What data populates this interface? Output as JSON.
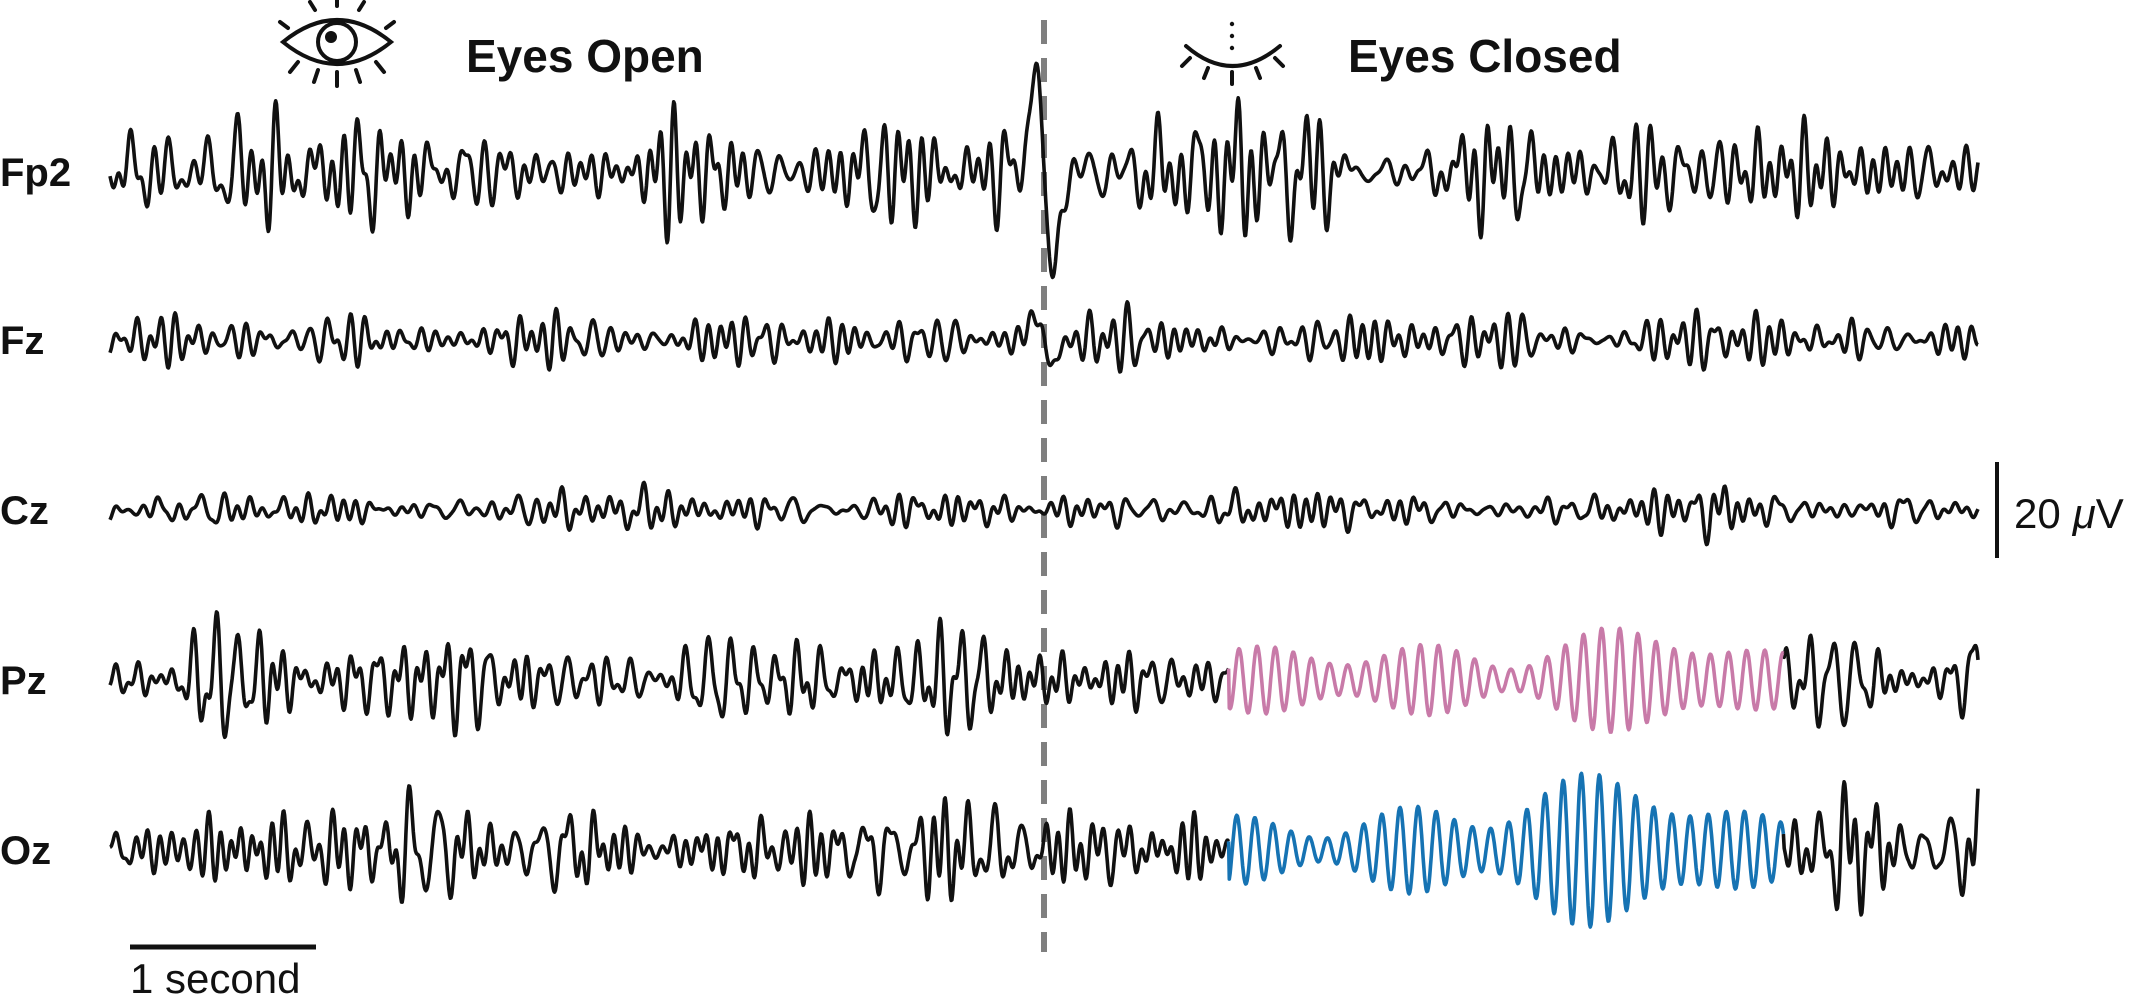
{
  "figure": {
    "conditions": [
      {
        "label": "Eyes Open",
        "icon": "open-eye-icon"
      },
      {
        "label": "Eyes Closed",
        "icon": "closed-eye-icon"
      }
    ],
    "time_scale_label": "1 second",
    "amplitude_scale_value": "20",
    "amplitude_scale_unit": "V",
    "amplitude_scale_prefix": "μ"
  },
  "chart_data": {
    "type": "line",
    "title": "",
    "xlabel": "",
    "ylabel": "",
    "time_unit": "seconds",
    "duration_s": 10.1,
    "transition_time_s": 5.05,
    "scale_bars": {
      "time_s": 1,
      "amplitude_uV": 20
    },
    "alpha_highlight_window_s": [
      6.05,
      9.05
    ],
    "colors": {
      "trace": "#111111",
      "divider": "#7f7f7f",
      "pz_alpha": "#c87aa8",
      "oz_alpha": "#1673b3"
    },
    "series": [
      {
        "name": "Fp2",
        "baseline_amplitude_uV": 8,
        "eye_blink_peak_uV": 38,
        "highlight": null
      },
      {
        "name": "Fz",
        "baseline_amplitude_uV": 4,
        "eye_blink_peak_uV": 9,
        "highlight": null
      },
      {
        "name": "Cz",
        "baseline_amplitude_uV": 3,
        "eye_blink_peak_uV": 0,
        "highlight": null
      },
      {
        "name": "Pz",
        "baseline_amplitude_uV": 7,
        "eye_blink_peak_uV": 0,
        "highlight": "pz_alpha",
        "alpha_peak_uV": 14
      },
      {
        "name": "Oz",
        "baseline_amplitude_uV": 7,
        "eye_blink_peak_uV": 0,
        "highlight": "oz_alpha",
        "alpha_peak_uV": 18
      }
    ]
  }
}
